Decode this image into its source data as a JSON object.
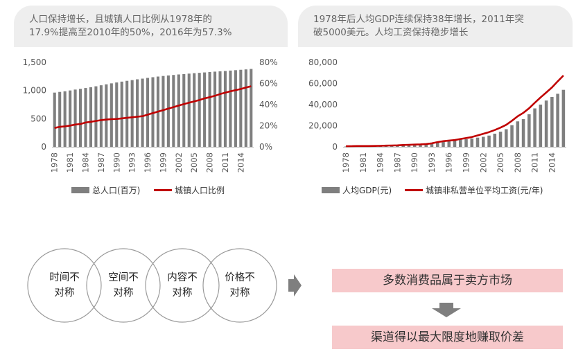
{
  "left_panel": {
    "title_line1": "人口保持增长，且城镇人口比例从1978年的",
    "title_line2": "17.9%提高至2010年的50%，2016年为57.3%"
  },
  "right_panel": {
    "title_line1": "1978年后人均GDP连续保持38年增长，2011年突",
    "title_line2": "破5000美元。人均工资保持稳步增长"
  },
  "colors": {
    "bar": "#7f7f7f",
    "line": "#c00000",
    "panel_bg": "#eeeeee",
    "pink": "#f7c9cb",
    "circle": "#9a9a9a",
    "arrow": "#7f7f7f"
  },
  "chart_data": [
    {
      "type": "bar+line",
      "title": "",
      "x": [
        1978,
        1979,
        1980,
        1981,
        1982,
        1983,
        1984,
        1985,
        1986,
        1987,
        1988,
        1989,
        1990,
        1991,
        1992,
        1993,
        1994,
        1995,
        1996,
        1997,
        1998,
        1999,
        2000,
        2001,
        2002,
        2003,
        2004,
        2005,
        2006,
        2007,
        2008,
        2009,
        2010,
        2011,
        2012,
        2013,
        2014,
        2015,
        2016
      ],
      "x_ticks": [
        "1978",
        "1981",
        "1984",
        "1987",
        "1990",
        "1993",
        "1996",
        "1999",
        "2002",
        "2005",
        "2008",
        "2011",
        "2014"
      ],
      "y_left_ticks": [
        "0",
        "500",
        "1,000",
        "1,500"
      ],
      "y_left_lim": [
        0,
        1500
      ],
      "y_right_ticks": [
        "0%",
        "20%",
        "40%",
        "60%",
        "80%"
      ],
      "y_right_lim": [
        0,
        80
      ],
      "series": [
        {
          "name": "总人口(百万)",
          "axis": "left",
          "kind": "bar",
          "values": [
            963,
            975,
            987,
            1001,
            1017,
            1030,
            1044,
            1059,
            1075,
            1093,
            1110,
            1127,
            1143,
            1158,
            1172,
            1185,
            1199,
            1211,
            1224,
            1236,
            1248,
            1258,
            1267,
            1276,
            1285,
            1292,
            1300,
            1308,
            1314,
            1321,
            1328,
            1335,
            1341,
            1347,
            1354,
            1361,
            1368,
            1375,
            1383
          ]
        },
        {
          "name": "城镇人口比例",
          "axis": "right",
          "kind": "line",
          "values": [
            17.9,
            18.96,
            19.39,
            20.16,
            21.13,
            21.62,
            23.01,
            23.71,
            24.52,
            25.32,
            25.81,
            26.21,
            26.41,
            26.94,
            27.46,
            27.99,
            28.51,
            29.04,
            30.48,
            31.91,
            33.35,
            34.78,
            36.22,
            37.66,
            39.09,
            40.53,
            41.76,
            42.99,
            44.34,
            45.89,
            46.99,
            48.34,
            49.95,
            51.27,
            52.57,
            53.73,
            54.77,
            56.1,
            57.35
          ]
        }
      ],
      "grid": false,
      "legend_position": "bottom"
    },
    {
      "type": "bar+line",
      "title": "",
      "x": [
        1978,
        1979,
        1980,
        1981,
        1982,
        1983,
        1984,
        1985,
        1986,
        1987,
        1988,
        1989,
        1990,
        1991,
        1992,
        1993,
        1994,
        1995,
        1996,
        1997,
        1998,
        1999,
        2000,
        2001,
        2002,
        2003,
        2004,
        2005,
        2006,
        2007,
        2008,
        2009,
        2010,
        2011,
        2012,
        2013,
        2014,
        2015,
        2016
      ],
      "x_ticks": [
        "1978",
        "1981",
        "1984",
        "1987",
        "1990",
        "1993",
        "1996",
        "1999",
        "2002",
        "2005",
        "2008",
        "2011",
        "2014"
      ],
      "y_ticks": [
        "0",
        "20,000",
        "40,000",
        "60,000",
        "80,000"
      ],
      "ylim": [
        0,
        80000
      ],
      "series": [
        {
          "name": "人均GDP(元)",
          "kind": "bar",
          "values": [
            385,
            423,
            468,
            497,
            533,
            588,
            702,
            866,
            973,
            1123,
            1378,
            1536,
            1663,
            1912,
            2334,
            3027,
            4081,
            5091,
            5898,
            6481,
            6860,
            7229,
            7942,
            8717,
            9506,
            10666,
            12487,
            14368,
            16738,
            20505,
            24121,
            26222,
            30876,
            36403,
            40007,
            43852,
            47203,
            50251,
            53980
          ]
        },
        {
          "name": "城镇非私营单位平均工资(元/年)",
          "kind": "line",
          "values": [
            615,
            668,
            762,
            772,
            798,
            826,
            974,
            1148,
            1329,
            1459,
            1747,
            1935,
            2140,
            2340,
            2711,
            3371,
            4538,
            5348,
            5980,
            6444,
            7446,
            8319,
            9333,
            10834,
            12373,
            13969,
            15920,
            18200,
            20856,
            24721,
            28898,
            32244,
            36539,
            41799,
            46769,
            51483,
            56360,
            62029,
            67569
          ]
        }
      ],
      "grid": false,
      "legend_position": "bottom"
    }
  ],
  "circles": [
    {
      "line1": "时间不",
      "line2": "对称"
    },
    {
      "line1": "空间不",
      "line2": "对称"
    },
    {
      "line1": "内容不",
      "line2": "对称"
    },
    {
      "line1": "价格不",
      "line2": "对称"
    }
  ],
  "boxes": {
    "top": "多数消费品属于卖方市场",
    "bottom": "渠道得以最大限度地赚取价差"
  }
}
